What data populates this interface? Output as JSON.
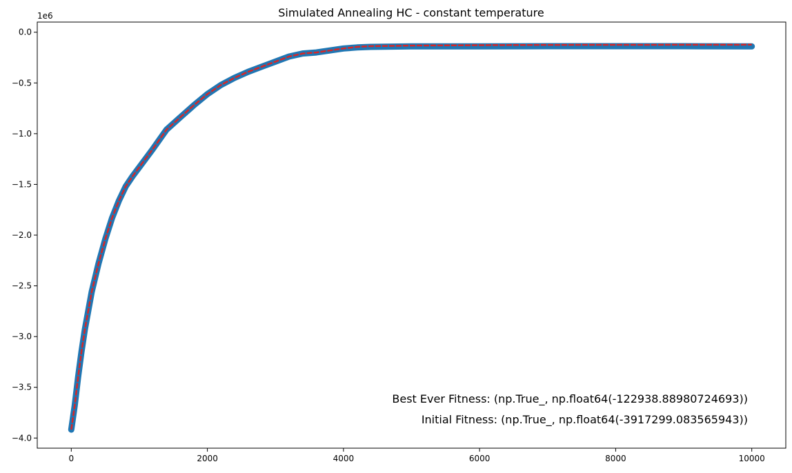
{
  "chart_data": {
    "type": "scatter",
    "title": "Simulated Annealing HC - constant temperature",
    "xlabel": "",
    "ylabel": "",
    "xlim": [
      -500,
      10500
    ],
    "ylim": [
      -4100000,
      100000
    ],
    "y_offset_label": "1e6",
    "x_ticks": [
      0,
      2000,
      4000,
      6000,
      8000,
      10000
    ],
    "x_tick_labels": [
      "0",
      "2000",
      "4000",
      "6000",
      "8000",
      "10000"
    ],
    "y_ticks": [
      0,
      -500000,
      -1000000,
      -1500000,
      -2000000,
      -2500000,
      -3000000,
      -3500000,
      -4000000
    ],
    "y_tick_labels": [
      "0.0",
      "−0.5",
      "−1.0",
      "−1.5",
      "−2.0",
      "−2.5",
      "−3.0",
      "−3.5",
      "−4.0"
    ],
    "grid": false,
    "series": [
      {
        "kind": "scatter-current",
        "color": "#1f77b4",
        "x": [
          0,
          50,
          100,
          150,
          200,
          300,
          400,
          500,
          600,
          700,
          800,
          900,
          1000,
          1200,
          1400,
          1600,
          1800,
          2000,
          2200,
          2400,
          2600,
          2800,
          3000,
          3200,
          3400,
          3600,
          3800,
          4000,
          4200,
          4400,
          5000,
          6000,
          7000,
          8000,
          9000,
          10000
        ],
        "y": [
          -3917299,
          -3680000,
          -3400000,
          -3150000,
          -2930000,
          -2560000,
          -2280000,
          -2040000,
          -1830000,
          -1660000,
          -1520000,
          -1420000,
          -1330000,
          -1150000,
          -960000,
          -840000,
          -720000,
          -610000,
          -520000,
          -450000,
          -390000,
          -340000,
          -290000,
          -240000,
          -210000,
          -200000,
          -180000,
          -160000,
          -150000,
          -145000,
          -140000,
          -140000,
          -138000,
          -138000,
          -138000,
          -140000
        ]
      },
      {
        "kind": "line-best",
        "color": "#d62728",
        "x": [
          0,
          50,
          100,
          150,
          200,
          300,
          400,
          500,
          600,
          700,
          800,
          900,
          1000,
          1200,
          1400,
          1600,
          1800,
          2000,
          2200,
          2400,
          2600,
          2800,
          3000,
          3200,
          3400,
          3600,
          3800,
          4000,
          4200,
          4400,
          5000,
          6000,
          7000,
          8000,
          9000,
          10000
        ],
        "y": [
          -3917299,
          -3680000,
          -3400000,
          -3150000,
          -2930000,
          -2560000,
          -2280000,
          -2040000,
          -1830000,
          -1660000,
          -1520000,
          -1420000,
          -1330000,
          -1150000,
          -960000,
          -840000,
          -720000,
          -610000,
          -520000,
          -450000,
          -390000,
          -340000,
          -290000,
          -240000,
          -210000,
          -200000,
          -180000,
          -160000,
          -145000,
          -138000,
          -132000,
          -128000,
          -125000,
          -124000,
          -123500,
          -122939
        ]
      }
    ],
    "annotations": [
      "Best Ever Fitness: (np.True_, np.float64(-122938.88980724693))",
      "Initial Fitness: (np.True_, np.float64(-3917299.083565943))"
    ]
  }
}
